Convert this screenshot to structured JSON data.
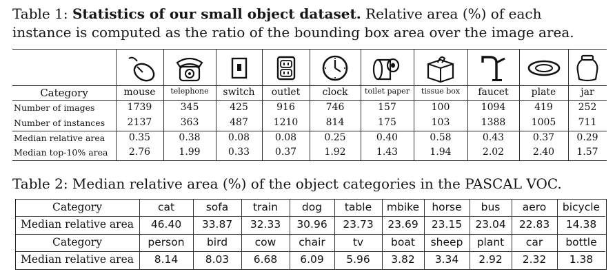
{
  "table1": {
    "caption_label": "Table 1:",
    "caption_bold": "Statistics of our small object dataset.",
    "caption_rest": "Relative area (%) of each",
    "caption_line2": "instance is computed as the ratio of the bounding box area over the image area.",
    "category_header": "Category",
    "categories": [
      "mouse",
      "telephone",
      "switch",
      "outlet",
      "clock",
      "toilet paper",
      "tissue box",
      "faucet",
      "plate",
      "jar"
    ],
    "icons": [
      "mouse-icon",
      "telephone-icon",
      "switch-icon",
      "outlet-icon",
      "clock-icon",
      "toilet-paper-icon",
      "tissue-box-icon",
      "faucet-icon",
      "plate-icon",
      "jar-icon"
    ],
    "rows": [
      {
        "label": "Number of images",
        "values": [
          "1739",
          "345",
          "425",
          "916",
          "746",
          "157",
          "100",
          "1094",
          "419",
          "252"
        ]
      },
      {
        "label": "Number of instances",
        "values": [
          "2137",
          "363",
          "487",
          "1210",
          "814",
          "175",
          "103",
          "1388",
          "1005",
          "711"
        ]
      },
      {
        "label": "Median relative area",
        "values": [
          "0.35",
          "0.38",
          "0.08",
          "0.08",
          "0.25",
          "0.40",
          "0.58",
          "0.43",
          "0.37",
          "0.29"
        ]
      },
      {
        "label": "Median top-10% area",
        "values": [
          "2.76",
          "1.99",
          "0.33",
          "0.37",
          "1.92",
          "1.43",
          "1.94",
          "2.02",
          "2.40",
          "1.57"
        ]
      }
    ]
  },
  "table2": {
    "caption": "Table 2: Median relative area (%) of the object categories in the PASCAL VOC.",
    "blocks": [
      {
        "header_label": "Category",
        "row_label": "Median relative area",
        "categories": [
          "cat",
          "sofa",
          "train",
          "dog",
          "table",
          "mbike",
          "horse",
          "bus",
          "aero",
          "bicycle"
        ],
        "values": [
          "46.40",
          "33.87",
          "32.33",
          "30.96",
          "23.73",
          "23.69",
          "23.15",
          "23.04",
          "22.83",
          "14.38"
        ]
      },
      {
        "header_label": "Category",
        "row_label": "Median relative area",
        "categories": [
          "person",
          "bird",
          "cow",
          "chair",
          "tv",
          "boat",
          "sheep",
          "plant",
          "car",
          "bottle"
        ],
        "values": [
          "8.14",
          "8.03",
          "6.68",
          "6.09",
          "5.96",
          "3.82",
          "3.34",
          "2.92",
          "2.32",
          "1.38"
        ]
      }
    ]
  }
}
